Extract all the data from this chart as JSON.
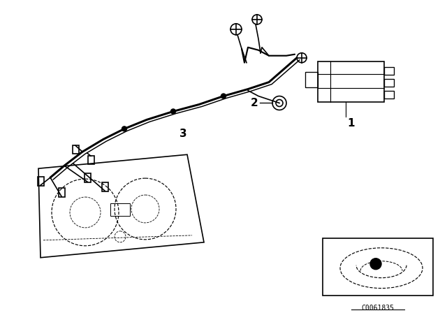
{
  "background_color": "#ffffff",
  "label_1": "1",
  "label_2": "2",
  "label_3": "3",
  "code": "C0061835",
  "line_color": "#000000",
  "fig_width": 6.4,
  "fig_height": 4.48,
  "dpi": 100
}
